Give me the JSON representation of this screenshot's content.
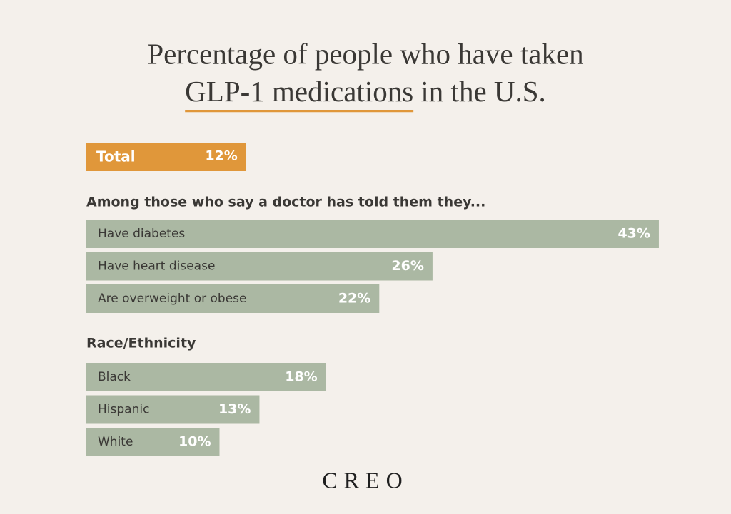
{
  "chart_data": {
    "type": "bar",
    "title": [
      "Percentage of people who have taken",
      "GLP-1 medications",
      "in the U.S."
    ],
    "total": {
      "category": "Total",
      "value": 12,
      "value_label": "12%",
      "color": "#e0973a"
    },
    "groups": [
      {
        "heading": "Among those who say a doctor has told them they...",
        "categories": [
          "Have diabetes",
          "Have heart disease",
          "Are overweight or obese"
        ],
        "values": [
          43,
          26,
          22
        ],
        "value_labels": [
          "43%",
          "26%",
          "22%"
        ],
        "color": "#abb8a3"
      },
      {
        "heading": "Race/Ethnicity",
        "categories": [
          "Black",
          "Hispanic",
          "White"
        ],
        "values": [
          18,
          13,
          10
        ],
        "value_labels": [
          "18%",
          "13%",
          "10%"
        ],
        "color": "#abb8a3"
      }
    ]
  },
  "brand": "CREO"
}
